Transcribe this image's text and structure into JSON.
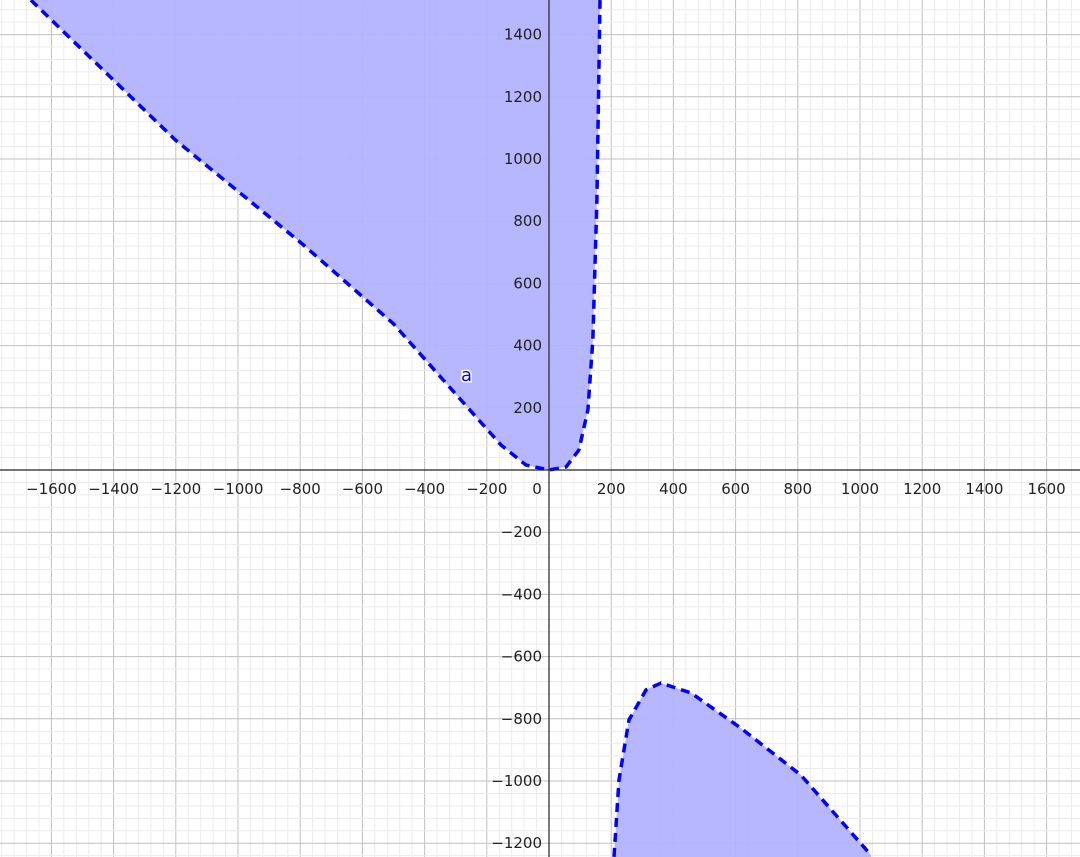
{
  "chart_data": {
    "type": "area",
    "title": "",
    "xlabel": "",
    "ylabel": "",
    "xlim": [
      -1765,
      1710
    ],
    "ylim": [
      -1245,
      1511
    ],
    "grid": true,
    "major_step": 200,
    "minor_step": 40,
    "x_ticks": [
      -1600,
      -1400,
      -1200,
      -1000,
      -800,
      -600,
      -400,
      -200,
      0,
      200,
      400,
      600,
      800,
      1000,
      1200,
      1400,
      1600
    ],
    "y_ticks": [
      -1200,
      -1000,
      -800,
      -600,
      -400,
      -200,
      200,
      400,
      600,
      800,
      1000,
      1200,
      1400
    ],
    "boundary_style": "dashed",
    "series": [
      {
        "name": "a",
        "color": "#0000ff",
        "fill_color": "#b3b3ff",
        "regions": [
          {
            "fill_to": "top",
            "points": [
              [
                -1666,
                1511
              ],
              [
                -1200,
                1060
              ],
              [
                -797,
                730
              ],
              [
                -500,
                470
              ],
              [
                -283,
                225
              ],
              [
                -154,
                80
              ],
              [
                -74,
                16
              ],
              [
                0,
                0
              ],
              [
                55,
                10
              ],
              [
                96,
                64
              ],
              [
                125,
                193
              ],
              [
                141,
                418
              ],
              [
                154,
                868
              ],
              [
                164,
                1511
              ]
            ]
          },
          {
            "fill_to": "bottom",
            "points": [
              [
                209,
                -1244
              ],
              [
                225,
                -997
              ],
              [
                257,
                -804
              ],
              [
                312,
                -707
              ],
              [
                360,
                -685
              ],
              [
                457,
                -717
              ],
              [
                617,
                -830
              ],
              [
                810,
                -981
              ],
              [
                1035,
                -1238
              ]
            ]
          }
        ]
      }
    ]
  }
}
